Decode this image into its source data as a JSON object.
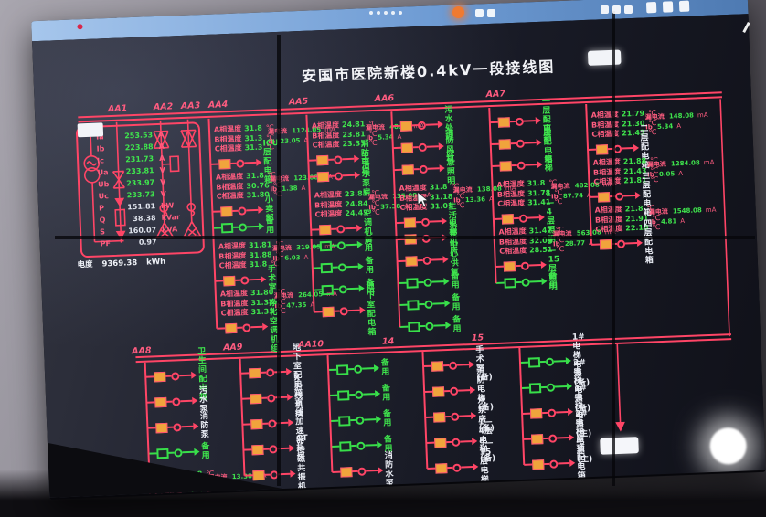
{
  "header": {
    "title": "安国市医院新楼0.4kV一段接线图",
    "button_label": "",
    "bottom_button_label": ""
  },
  "colors": {
    "line_red": "#ff4566",
    "breaker_orange": "#f0a43c",
    "spare_green": "#3ade4b",
    "text_green": "#3fe54d",
    "text_pink": "#ff5d80",
    "text_white": "#e9ecf4",
    "titlebar_blue": "#6f9cd4"
  },
  "temp_labels": [
    "A相温度",
    "B相温度",
    "C相温度"
  ],
  "leak_label": "漏电流",
  "ib_label": "Ib",
  "units": {
    "temp": "℃",
    "leak": "mA",
    "current": "A"
  },
  "panel": {
    "rows": [
      {
        "l": "Ia",
        "v": "253.53",
        "u": "A",
        "vc": "green"
      },
      {
        "l": "Ib",
        "v": "223.88",
        "u": "A",
        "vc": "green"
      },
      {
        "l": "Ic",
        "v": "231.73",
        "u": "A",
        "vc": "green"
      },
      {
        "l": "Ua",
        "v": "233.81",
        "u": "V",
        "vc": "green"
      },
      {
        "l": "Ub",
        "v": "233.97",
        "u": "V",
        "vc": "green"
      },
      {
        "l": "Uc",
        "v": "233.73",
        "u": "V",
        "vc": "green"
      },
      {
        "l": "P",
        "v": "151.81",
        "u": "kW",
        "vc": "white"
      },
      {
        "l": "Q",
        "v": "38.38",
        "u": "kVar",
        "vc": "white"
      },
      {
        "l": "S",
        "v": "160.07",
        "u": "kVA",
        "vc": "white"
      },
      {
        "l": "PF",
        "v": "0.97",
        "u": "",
        "vc": "white"
      }
    ],
    "footer": {
      "l": "电度",
      "v": "9369.38",
      "u": "kWh"
    }
  },
  "bus1_labels": [
    "AA1",
    "AA2",
    "AA3",
    "AA4",
    "AA5",
    "AA6",
    "AA7"
  ],
  "bus2_labels": [
    "AA8",
    "AA9",
    "AA10",
    "14",
    "15"
  ],
  "columns_top": [
    {
      "id": "AA4",
      "rows": [
        {
          "temps": [
            "31.8",
            "31.3",
            "31.3"
          ],
          "leak": "1124.05",
          "ib": "23.05",
          "style": "orange",
          "label": "ICU层配电箱",
          "lc": "green"
        },
        {
          "temps": [
            "31.8",
            "30.76",
            "31.80"
          ],
          "leak": "123.08",
          "ib": "1.38",
          "style": "orange",
          "label": "小卖部",
          "lc": "green"
        },
        {
          "style": "green",
          "label": "备用",
          "lc": "green"
        },
        {
          "temps": [
            "31.81",
            "31.88",
            "31.8"
          ],
          "leak": "319.05",
          "ib": "6.03",
          "style": "orange",
          "label": "手术室",
          "lc": "green"
        },
        {
          "temps": [
            "31.80",
            "31.38",
            "31.33"
          ],
          "leak": "264.05",
          "ib": "47.35",
          "style": "orange",
          "label": "净化空调机组",
          "lc": "green"
        }
      ]
    },
    {
      "id": "AA5",
      "rows": [
        {
          "temps": [
            "24.81",
            "23.81",
            "23.31"
          ],
          "leak": "48.08",
          "ib": "5.34",
          "style": "orange",
          "label": "消防电梯",
          "lc": "green"
        },
        {
          "style": "orange",
          "label": "生活水泵房",
          "lc": "green"
        },
        {
          "temps": [
            "23.81",
            "24.84",
            "24.43"
          ],
          "leak": "135.08",
          "ib": "37.38",
          "style": "orange",
          "label": "空调机房",
          "lc": "green"
        },
        {
          "style": "green",
          "label": "备用",
          "lc": "green"
        },
        {
          "style": "green",
          "label": "备用",
          "lc": "green"
        },
        {
          "style": "green",
          "label": "备用",
          "lc": "green"
        },
        {
          "style": "orange",
          "label": "地下室配电箱",
          "lc": "green"
        }
      ]
    },
    {
      "id": "AA6",
      "rows": [
        {
          "style": "orange",
          "label": "污水处理",
          "lc": "green"
        },
        {
          "style": "orange",
          "label": "消防风机",
          "lc": "green"
        },
        {
          "style": "orange",
          "label": "应急照明",
          "lc": "green"
        },
        {
          "temps": [
            "31.8",
            "31.18",
            "31.01"
          ],
          "leak": "138.08",
          "ib": "13.36",
          "style": "orange",
          "label": "生活水泵",
          "lc": "green"
        },
        {
          "style": "orange",
          "label": "电梯机房",
          "lc": "green"
        },
        {
          "style": "orange",
          "label": "中心供氧",
          "lc": "green"
        },
        {
          "style": "green",
          "label": "备用",
          "lc": "green"
        },
        {
          "style": "green",
          "label": "备用",
          "lc": "green"
        },
        {
          "style": "green",
          "label": "备用",
          "lc": "green"
        }
      ]
    },
    {
      "id": "AA7",
      "rows": [
        {
          "style": "orange",
          "label": "一层配电箱",
          "lc": "green"
        },
        {
          "style": "orange",
          "label": "二层配电箱",
          "lc": "green"
        },
        {
          "style": "orange",
          "label": "电梯",
          "lc": "green"
        },
        {
          "temps": [
            "31.8",
            "31.78",
            "31.41"
          ],
          "leak": "482.08",
          "ib": "87.74",
          "style": "orange",
          "label": "1—4层照明",
          "lc": "green"
        },
        {
          "temps": [
            "31.47",
            "32.07",
            "28.51"
          ],
          "leak": "563.08",
          "ib": "28.77",
          "style": "orange",
          "label": "9—15层照明",
          "lc": "green"
        },
        {
          "style": "green",
          "label": "备用",
          "lc": "green"
        }
      ]
    },
    {
      "id": "",
      "rows": [
        {
          "temps": [
            "21.79",
            "21.30",
            "21.43"
          ],
          "leak": "148.08",
          "ib": "5.34",
          "style": "orange",
          "label": "二层配电箱",
          "lc": "white"
        },
        {
          "temps": [
            "21.88",
            "21.43",
            "21.81"
          ],
          "leak": "1284.08",
          "ib": "0.05",
          "style": "orange",
          "label": "三层配电箱",
          "lc": "white"
        },
        {
          "temps": [
            "21.8",
            "21.91",
            "22.18"
          ],
          "leak": "1548.08",
          "ib": "4.81",
          "style": "orange",
          "label": "四层配电箱",
          "lc": "white"
        }
      ]
    }
  ],
  "columns_bottom": [
    {
      "id": "AA8",
      "rows": [
        {
          "style": "orange",
          "label": "卫生间配电箱",
          "lc": "green"
        },
        {
          "style": "orange",
          "label": "污水泵",
          "lc": "white"
        },
        {
          "style": "orange",
          "label": "消防泵",
          "lc": "white"
        },
        {
          "style": "green",
          "label": "备用",
          "lc": "green"
        },
        {
          "temps": [
            "31.8",
            "31.4",
            "31.3"
          ],
          "leak": "13.38",
          "ib": "",
          "style": "orange",
          "label": "",
          "lc": "green"
        }
      ]
    },
    {
      "id": "AA9",
      "rows": [
        {
          "style": "orange",
          "label": "地下室配电箱",
          "lc": "white"
        },
        {
          "style": "orange",
          "label": "X射线机房",
          "lc": "white"
        },
        {
          "style": "orange",
          "label": "直线加速器",
          "lc": "white"
        },
        {
          "style": "orange",
          "label": "CT机房",
          "lc": "white"
        },
        {
          "style": "orange",
          "label": "核磁共振机房",
          "lc": "white"
        }
      ]
    },
    {
      "id": "AA10",
      "rows": [
        {
          "style": "green",
          "label": "备用",
          "lc": "green"
        },
        {
          "style": "green",
          "label": "备用",
          "lc": "green"
        },
        {
          "style": "green",
          "label": "备用",
          "lc": "green"
        },
        {
          "style": "green",
          "label": "备用",
          "lc": "green"
        },
        {
          "style": "orange",
          "label": "消防水泵",
          "lc": "white"
        }
      ]
    },
    {
      "id": "14",
      "rows": [
        {
          "style": "orange",
          "label": "手术室(备)",
          "lc": "white"
        },
        {
          "style": "orange",
          "label": "消防电梯(备)",
          "lc": "white"
        },
        {
          "style": "orange",
          "label": "水泵房(备)",
          "lc": "white"
        },
        {
          "style": "orange",
          "label": "1—4层电梯(备)",
          "lc": "white"
        },
        {
          "style": "orange",
          "label": "9—15层电梯(备)",
          "lc": "white"
        }
      ]
    },
    {
      "id": "15",
      "rows": [
        {
          "style": "green",
          "label": "1#电梯电源(备)",
          "lc": "white"
        },
        {
          "style": "green",
          "label": "2#电梯电源(备)",
          "lc": "white"
        },
        {
          "style": "orange",
          "label": "1#电梯电源(主)",
          "lc": "white"
        },
        {
          "style": "orange",
          "label": "2#电梯电源(主)",
          "lc": "white"
        },
        {
          "style": "orange",
          "label": "屋顶配电箱(主)",
          "lc": "white"
        }
      ]
    }
  ],
  "overlay_icons": [
    "status-dots",
    "record-dot",
    "toolbar-glyphs",
    "window-icons",
    "stylus-glyph"
  ]
}
